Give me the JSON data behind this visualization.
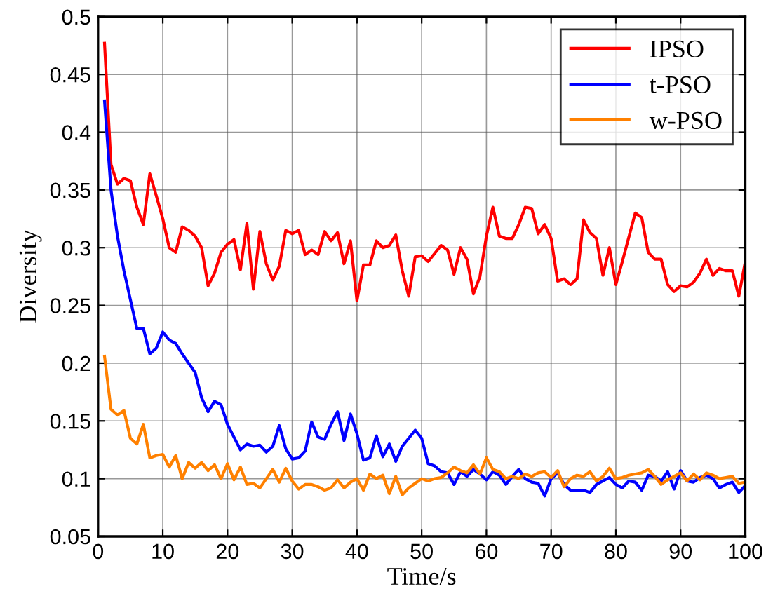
{
  "chart_data": {
    "type": "line",
    "xlabel": "Time/s",
    "ylabel": "Diversity",
    "x": [
      1,
      2,
      3,
      4,
      5,
      6,
      7,
      8,
      9,
      10,
      11,
      12,
      13,
      14,
      15,
      16,
      17,
      18,
      19,
      20,
      21,
      22,
      23,
      24,
      25,
      26,
      27,
      28,
      29,
      30,
      31,
      32,
      33,
      34,
      35,
      36,
      37,
      38,
      39,
      40,
      41,
      42,
      43,
      44,
      45,
      46,
      47,
      48,
      49,
      50,
      51,
      52,
      53,
      54,
      55,
      56,
      57,
      58,
      59,
      60,
      61,
      62,
      63,
      64,
      65,
      66,
      67,
      68,
      69,
      70,
      71,
      72,
      73,
      74,
      75,
      76,
      77,
      78,
      79,
      80,
      81,
      82,
      83,
      84,
      85,
      86,
      87,
      88,
      89,
      90,
      91,
      92,
      93,
      94,
      95,
      96,
      97,
      98,
      99,
      100
    ],
    "series": [
      {
        "name": "IPSO",
        "color": "#ff0000",
        "values": [
          0.477,
          0.372,
          0.355,
          0.36,
          0.358,
          0.335,
          0.32,
          0.364,
          0.345,
          0.325,
          0.3,
          0.296,
          0.318,
          0.315,
          0.31,
          0.3,
          0.267,
          0.278,
          0.296,
          0.303,
          0.307,
          0.281,
          0.321,
          0.264,
          0.314,
          0.286,
          0.272,
          0.284,
          0.315,
          0.312,
          0.315,
          0.294,
          0.298,
          0.294,
          0.314,
          0.306,
          0.313,
          0.286,
          0.306,
          0.254,
          0.285,
          0.285,
          0.306,
          0.3,
          0.302,
          0.311,
          0.28,
          0.258,
          0.292,
          0.293,
          0.288,
          0.295,
          0.302,
          0.298,
          0.277,
          0.3,
          0.29,
          0.26,
          0.275,
          0.31,
          0.335,
          0.31,
          0.308,
          0.308,
          0.32,
          0.335,
          0.334,
          0.312,
          0.32,
          0.308,
          0.271,
          0.273,
          0.268,
          0.273,
          0.324,
          0.313,
          0.308,
          0.276,
          0.3,
          0.268,
          0.288,
          0.309,
          0.33,
          0.326,
          0.296,
          0.29,
          0.29,
          0.268,
          0.262,
          0.267,
          0.266,
          0.27,
          0.278,
          0.29,
          0.276,
          0.282,
          0.28,
          0.28,
          0.258,
          0.288
        ]
      },
      {
        "name": "t-PSO",
        "color": "#0000ff",
        "values": [
          0.427,
          0.35,
          0.31,
          0.28,
          0.255,
          0.23,
          0.23,
          0.208,
          0.213,
          0.227,
          0.22,
          0.217,
          0.208,
          0.2,
          0.192,
          0.17,
          0.158,
          0.167,
          0.164,
          0.147,
          0.136,
          0.125,
          0.13,
          0.128,
          0.129,
          0.123,
          0.128,
          0.146,
          0.126,
          0.117,
          0.118,
          0.124,
          0.149,
          0.136,
          0.134,
          0.147,
          0.158,
          0.133,
          0.156,
          0.139,
          0.116,
          0.118,
          0.137,
          0.119,
          0.13,
          0.115,
          0.128,
          0.135,
          0.142,
          0.135,
          0.113,
          0.111,
          0.106,
          0.105,
          0.095,
          0.106,
          0.102,
          0.108,
          0.104,
          0.099,
          0.106,
          0.103,
          0.095,
          0.102,
          0.108,
          0.1,
          0.097,
          0.096,
          0.085,
          0.1,
          0.105,
          0.095,
          0.09,
          0.09,
          0.09,
          0.088,
          0.095,
          0.098,
          0.101,
          0.095,
          0.092,
          0.098,
          0.097,
          0.09,
          0.103,
          0.102,
          0.098,
          0.106,
          0.091,
          0.107,
          0.098,
          0.097,
          0.101,
          0.103,
          0.1,
          0.092,
          0.095,
          0.097,
          0.088,
          0.094
        ]
      },
      {
        "name": "w-PSO",
        "color": "#ff8000",
        "values": [
          0.206,
          0.16,
          0.155,
          0.159,
          0.135,
          0.13,
          0.147,
          0.118,
          0.12,
          0.121,
          0.11,
          0.12,
          0.1,
          0.114,
          0.109,
          0.114,
          0.107,
          0.112,
          0.1,
          0.113,
          0.099,
          0.11,
          0.095,
          0.096,
          0.092,
          0.1,
          0.108,
          0.097,
          0.109,
          0.098,
          0.091,
          0.095,
          0.095,
          0.093,
          0.09,
          0.092,
          0.099,
          0.092,
          0.097,
          0.1,
          0.09,
          0.104,
          0.1,
          0.103,
          0.087,
          0.102,
          0.086,
          0.092,
          0.096,
          0.1,
          0.098,
          0.1,
          0.101,
          0.105,
          0.11,
          0.107,
          0.105,
          0.112,
          0.104,
          0.118,
          0.108,
          0.106,
          0.1,
          0.102,
          0.1,
          0.104,
          0.102,
          0.105,
          0.106,
          0.101,
          0.107,
          0.093,
          0.1,
          0.103,
          0.102,
          0.106,
          0.098,
          0.102,
          0.109,
          0.1,
          0.101,
          0.103,
          0.104,
          0.105,
          0.108,
          0.102,
          0.095,
          0.099,
          0.102,
          0.105,
          0.098,
          0.104,
          0.099,
          0.105,
          0.103,
          0.1,
          0.101,
          0.102,
          0.096,
          0.097
        ]
      }
    ],
    "xlim": [
      0,
      100
    ],
    "ylim": [
      0.05,
      0.5
    ],
    "xticks": [
      0,
      10,
      20,
      30,
      40,
      50,
      60,
      70,
      80,
      90,
      100
    ],
    "yticks": [
      0.05,
      0.1,
      0.15,
      0.2,
      0.25,
      0.3,
      0.35,
      0.4,
      0.45,
      0.5
    ],
    "grid": true,
    "legend": "top right",
    "marker": "none",
    "line_style": "solid"
  }
}
